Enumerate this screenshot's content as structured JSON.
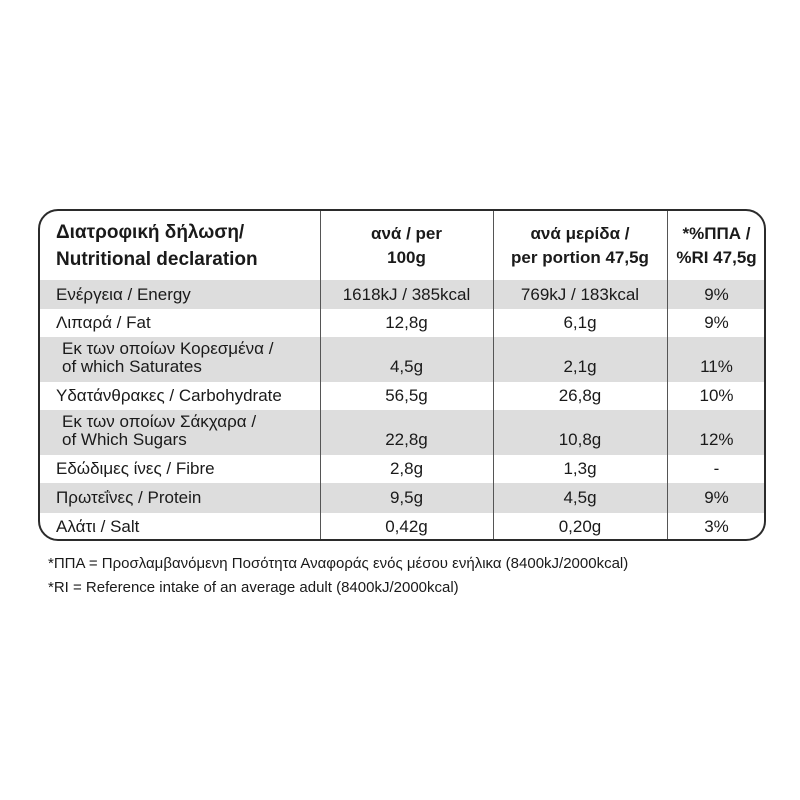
{
  "header": {
    "label_line1": "Διατροφική δήλωση/",
    "label_line2": "Nutritional declaration",
    "per100_line1": "ανά / per",
    "per100_line2": "100g",
    "portion_line1": "ανά μερίδα /",
    "portion_line2": "per portion 47,5g",
    "ri_line1": "*%ΠΠΑ /",
    "ri_line2": "%RI 47,5g"
  },
  "rows": [
    {
      "label1": "Ενέργεια / Energy",
      "per100": "1618kJ / 385kcal",
      "portion": "769kJ / 183kcal",
      "ri": "9%"
    },
    {
      "label1": "Λιπαρά / Fat",
      "per100": "12,8g",
      "portion": "6,1g",
      "ri": "9%"
    },
    {
      "label1": "Εκ των οποίων Κορεσμένα /",
      "label2": "of which Saturates",
      "per100": "4,5g",
      "portion": "2,1g",
      "ri": "11%"
    },
    {
      "label1": "Υδατάνθρακες / Carbohydrate",
      "per100": "56,5g",
      "portion": "26,8g",
      "ri": "10%"
    },
    {
      "label1": "Εκ των οποίων Σάκχαρα /",
      "label2": "of Which Sugars",
      "per100": "22,8g",
      "portion": "10,8g",
      "ri": "12%"
    },
    {
      "label1": "Εδώδιμες ίνες / Fibre",
      "per100": "2,8g",
      "portion": "1,3g",
      "ri": "-"
    },
    {
      "label1": "Πρωτεΐνες / Protein",
      "per100": "9,5g",
      "portion": "4,5g",
      "ri": "9%"
    },
    {
      "label1": "Αλάτι / Salt",
      "per100": "0,42g",
      "portion": "0,20g",
      "ri": "3%"
    }
  ],
  "footnotes": {
    "greek": "*ΠΠΑ = Προσλαμβανόμενη Ποσότητα Αναφοράς ενός μέσου ενήλικα (8400kJ/2000kcal)",
    "english": "*RI = Reference intake of an average adult (8400kJ/2000kcal)"
  }
}
